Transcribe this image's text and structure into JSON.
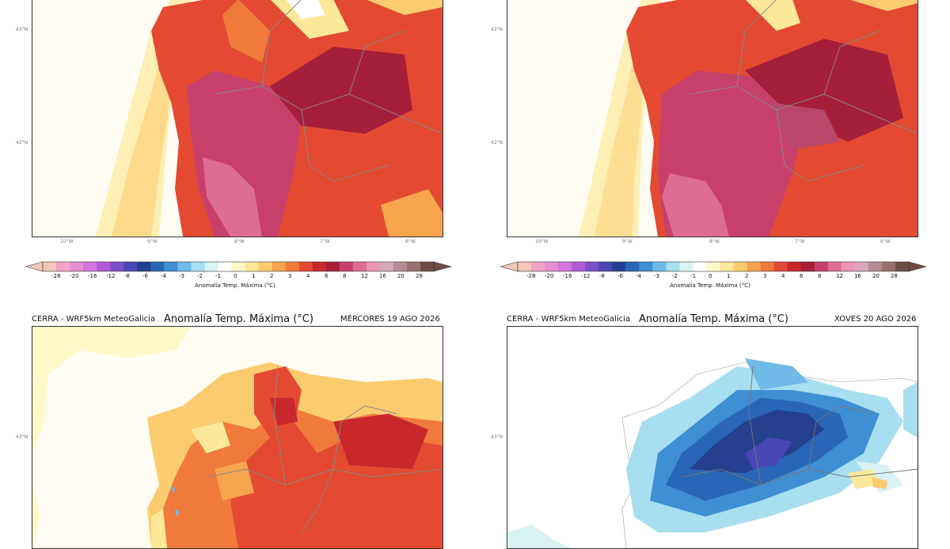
{
  "colorbar": {
    "ticks": [
      "-28",
      "-20",
      "-16",
      "-12",
      "-8",
      "-6",
      "-4",
      "-3",
      "-2",
      "-1",
      "0",
      "1",
      "2",
      "3",
      "4",
      "6",
      "8",
      "12",
      "16",
      "20",
      "28"
    ],
    "title": "Anomalía Temp. Máxima (°C)",
    "colors": [
      "#f3c6b9",
      "#f0a5c8",
      "#e58ed2",
      "#d276dc",
      "#b05ad8",
      "#7a4fc9",
      "#4a46b6",
      "#24408f",
      "#2a66b8",
      "#3f8fd4",
      "#6fbae6",
      "#a7def0",
      "#d9f2f4",
      "#ffffff",
      "#fff8c8",
      "#fde89a",
      "#fbcb6f",
      "#f7a44e",
      "#ef7a3c",
      "#e34a31",
      "#c8282c",
      "#a51e3a",
      "#c73f6b",
      "#dd6d93",
      "#ea96b5",
      "#d9a7bb",
      "#b88b93",
      "#9a6f6f",
      "#6e4c45"
    ],
    "left_tip": "#f3c6b9",
    "right_tip": "#6e4c45"
  },
  "axes": {
    "lat_labels": [
      "43°N",
      "42°N"
    ],
    "lon_labels": [
      "10°W",
      "9°W",
      "8°W",
      "7°W",
      "6°W"
    ]
  },
  "panels": [
    {
      "id": "top-left",
      "source": "",
      "title": "",
      "date": "",
      "theme": "hot-west"
    },
    {
      "id": "top-right",
      "source": "",
      "title": "",
      "date": "",
      "theme": "hot-west"
    },
    {
      "id": "bottom-left",
      "source": "CERRA - WRF5km MeteoGalicia",
      "title": "Anomalía Temp. Máxima (°C)",
      "date": "MÉRCORES 19 AGO 2026",
      "theme": "warm"
    },
    {
      "id": "bottom-right",
      "source": "CERRA - WRF5km MeteoGalicia",
      "title": "Anomalía Temp. Máxima (°C)",
      "date": "XOVES 20 AGO 2026",
      "theme": "cold"
    }
  ]
}
